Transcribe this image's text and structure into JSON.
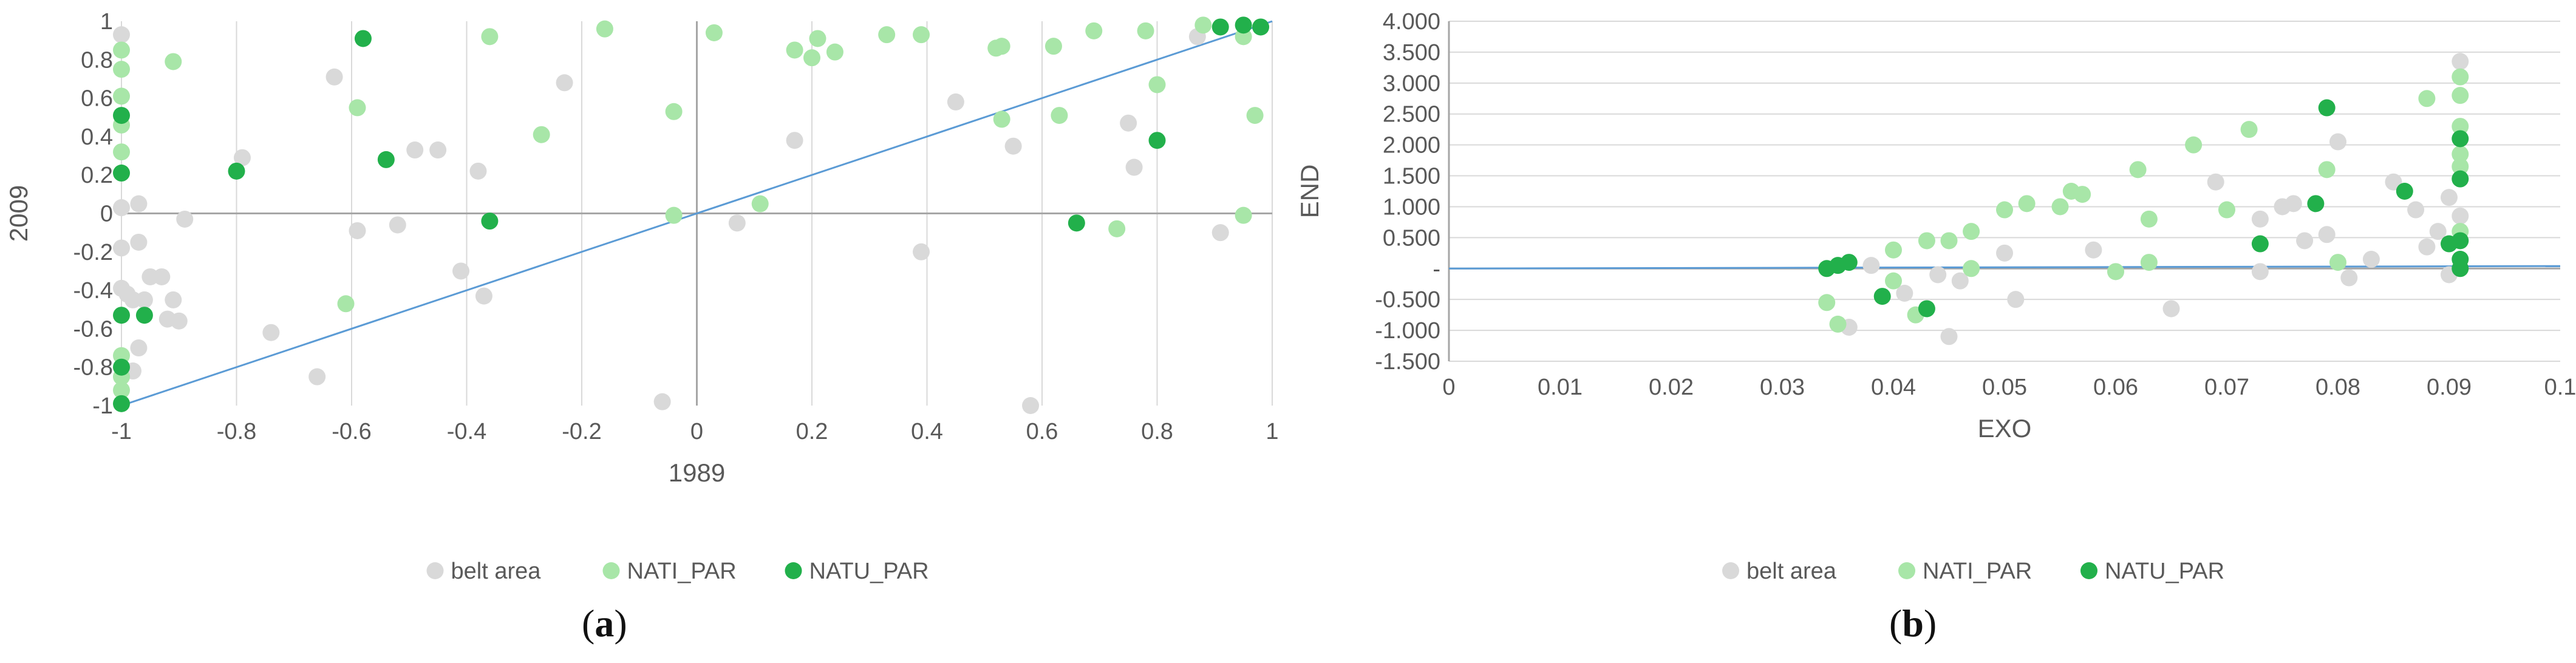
{
  "colors": {
    "belt_area": "#d9d9d9",
    "NATI_PAR": "#a8e6a8",
    "NATU_PAR": "#22b04b",
    "trend": "#5b9bd5",
    "axis": "#a6a6a6",
    "grid": "#d9d9d9",
    "text": "#595959"
  },
  "captions": [
    {
      "open": "(",
      "letter": "a",
      "close": ")"
    },
    {
      "open": "(",
      "letter": "b",
      "close": ")"
    }
  ],
  "chart_data": [
    {
      "type": "scatter",
      "xlabel": "1989",
      "ylabel": "2009",
      "xlim": [
        -1,
        1
      ],
      "ylim": [
        -1,
        1
      ],
      "x_ticks": [
        -1,
        -0.8,
        -0.6,
        -0.4,
        -0.2,
        0,
        0.2,
        0.4,
        0.6,
        0.8,
        1
      ],
      "x_tick_labels": [
        "-1",
        "-0.8",
        "-0.6",
        "-0.4",
        "-0.2",
        "0",
        "0.2",
        "0.4",
        "0.6",
        "0.8",
        "1"
      ],
      "y_ticks": [
        -1,
        -0.8,
        -0.6,
        -0.4,
        -0.2,
        0,
        0.2,
        0.4,
        0.6,
        0.8,
        1
      ],
      "y_tick_labels": [
        "-1",
        "-0.8",
        "-0.6",
        "-0.4",
        "-0.2",
        "0",
        "0.2",
        "0.4",
        "0.6",
        "0.8",
        "1"
      ],
      "grid": "vertical",
      "legend": "bottom-center",
      "trendline": [
        [
          -1,
          -1
        ],
        [
          1,
          1
        ]
      ],
      "series": [
        {
          "name": "belt area",
          "color": "#d9d9d9",
          "points": [
            [
              -1,
              0.93
            ],
            [
              -1,
              0.03
            ],
            [
              -1,
              -0.18
            ],
            [
              -1,
              -0.39
            ],
            [
              -0.99,
              -0.42
            ],
            [
              -0.98,
              -0.45
            ],
            [
              -0.98,
              -0.82
            ],
            [
              -0.97,
              0.05
            ],
            [
              -0.97,
              -0.15
            ],
            [
              -0.97,
              -0.7
            ],
            [
              -0.96,
              -0.45
            ],
            [
              -0.95,
              -0.33
            ],
            [
              -0.93,
              -0.33
            ],
            [
              -0.92,
              -0.55
            ],
            [
              -0.91,
              -0.45
            ],
            [
              -0.9,
              -0.56
            ],
            [
              -0.89,
              -0.03
            ],
            [
              -0.79,
              0.29
            ],
            [
              -0.74,
              -0.62
            ],
            [
              -0.66,
              -0.85
            ],
            [
              -0.63,
              0.71
            ],
            [
              -0.59,
              -0.09
            ],
            [
              -0.52,
              -0.06
            ],
            [
              -0.49,
              0.33
            ],
            [
              -0.45,
              0.33
            ],
            [
              -0.41,
              -0.3
            ],
            [
              -0.38,
              0.22
            ],
            [
              -0.37,
              -0.43
            ],
            [
              -0.23,
              0.68
            ],
            [
              -0.06,
              -0.98
            ],
            [
              0.07,
              -0.05
            ],
            [
              0.17,
              0.38
            ],
            [
              0.39,
              -0.2
            ],
            [
              0.45,
              0.58
            ],
            [
              0.55,
              0.35
            ],
            [
              0.58,
              -1.0
            ],
            [
              0.75,
              0.47
            ],
            [
              0.76,
              0.24
            ],
            [
              0.87,
              0.92
            ],
            [
              0.91,
              -0.1
            ]
          ]
        },
        {
          "name": "NATI_PAR",
          "color": "#a8e6a8",
          "points": [
            [
              -1,
              0.85
            ],
            [
              -1,
              0.75
            ],
            [
              -1,
              0.61
            ],
            [
              -1,
              0.46
            ],
            [
              -1,
              0.32
            ],
            [
              -1,
              -0.74
            ],
            [
              -1,
              -0.85
            ],
            [
              -1,
              -0.92
            ],
            [
              -0.91,
              0.79
            ],
            [
              -0.61,
              -0.47
            ],
            [
              -0.59,
              0.55
            ],
            [
              -0.36,
              0.92
            ],
            [
              -0.27,
              0.41
            ],
            [
              -0.16,
              0.96
            ],
            [
              -0.04,
              -0.01
            ],
            [
              -0.04,
              0.53
            ],
            [
              0.03,
              0.94
            ],
            [
              0.11,
              0.05
            ],
            [
              0.17,
              0.85
            ],
            [
              0.2,
              0.81
            ],
            [
              0.21,
              0.91
            ],
            [
              0.24,
              0.84
            ],
            [
              0.33,
              0.93
            ],
            [
              0.39,
              0.93
            ],
            [
              0.52,
              0.86
            ],
            [
              0.53,
              0.87
            ],
            [
              0.53,
              0.49
            ],
            [
              0.62,
              0.87
            ],
            [
              0.63,
              0.51
            ],
            [
              0.69,
              0.95
            ],
            [
              0.73,
              -0.08
            ],
            [
              0.78,
              0.95
            ],
            [
              0.8,
              0.67
            ],
            [
              0.88,
              0.98
            ],
            [
              0.95,
              0.92
            ],
            [
              0.95,
              -0.01
            ],
            [
              0.97,
              0.51
            ]
          ]
        },
        {
          "name": "NATU_PAR",
          "color": "#22b04b",
          "points": [
            [
              -1,
              0.51
            ],
            [
              -1,
              0.21
            ],
            [
              -1,
              -0.53
            ],
            [
              -1,
              -0.8
            ],
            [
              -1,
              -0.99
            ],
            [
              -0.96,
              -0.53
            ],
            [
              -0.8,
              0.22
            ],
            [
              -0.58,
              0.91
            ],
            [
              -0.54,
              0.28
            ],
            [
              -0.36,
              -0.04
            ],
            [
              0.66,
              -0.05
            ],
            [
              0.8,
              0.38
            ],
            [
              0.91,
              0.97
            ],
            [
              0.95,
              0.98
            ],
            [
              0.98,
              0.97
            ]
          ]
        }
      ]
    },
    {
      "type": "scatter",
      "xlabel": "EXO",
      "ylabel": "END",
      "xlim": [
        0,
        0.1
      ],
      "ylim": [
        -1.5,
        4.0
      ],
      "x_ticks": [
        0,
        0.01,
        0.02,
        0.03,
        0.04,
        0.05,
        0.06,
        0.07,
        0.08,
        0.09,
        0.1
      ],
      "x_tick_labels": [
        "0",
        "0.01",
        "0.02",
        "0.03",
        "0.04",
        "0.05",
        "0.06",
        "0.07",
        "0.08",
        "0.09",
        "0.1"
      ],
      "y_ticks": [
        -1.5,
        -1.0,
        -0.5,
        0,
        0.5,
        1.0,
        1.5,
        2.0,
        2.5,
        3.0,
        3.5,
        4.0
      ],
      "y_tick_labels": [
        "-1.500",
        "-1.000",
        "-0.500",
        "-",
        "0.500",
        "1.000",
        "1.500",
        "2.000",
        "2.500",
        "3.000",
        "3.500",
        "4.000"
      ],
      "grid": "horizontal",
      "legend": "bottom-center",
      "trendline": [
        [
          0,
          0
        ],
        [
          0.1,
          0.04
        ]
      ],
      "series": [
        {
          "name": "belt area",
          "color": "#d9d9d9",
          "points": [
            [
              0.036,
              -0.95
            ],
            [
              0.038,
              0.05
            ],
            [
              0.041,
              -0.4
            ],
            [
              0.044,
              -0.1
            ],
            [
              0.045,
              -1.1
            ],
            [
              0.046,
              -0.2
            ],
            [
              0.05,
              0.25
            ],
            [
              0.051,
              -0.5
            ],
            [
              0.058,
              0.3
            ],
            [
              0.06,
              -0.05
            ],
            [
              0.065,
              -0.65
            ],
            [
              0.069,
              1.4
            ],
            [
              0.073,
              0.8
            ],
            [
              0.073,
              -0.05
            ],
            [
              0.075,
              1.0
            ],
            [
              0.076,
              1.05
            ],
            [
              0.077,
              0.45
            ],
            [
              0.079,
              0.55
            ],
            [
              0.08,
              2.05
            ],
            [
              0.081,
              -0.15
            ],
            [
              0.083,
              0.15
            ],
            [
              0.085,
              1.4
            ],
            [
              0.087,
              0.95
            ],
            [
              0.088,
              0.35
            ],
            [
              0.089,
              0.6
            ],
            [
              0.09,
              1.15
            ],
            [
              0.091,
              3.35
            ],
            [
              0.091,
              0.85
            ],
            [
              0.09,
              -0.1
            ]
          ]
        },
        {
          "name": "NATI_PAR",
          "color": "#a8e6a8",
          "points": [
            [
              0.034,
              -0.55
            ],
            [
              0.035,
              -0.9
            ],
            [
              0.04,
              -0.2
            ],
            [
              0.04,
              0.3
            ],
            [
              0.042,
              -0.75
            ],
            [
              0.043,
              0.45
            ],
            [
              0.045,
              0.45
            ],
            [
              0.047,
              0.0
            ],
            [
              0.047,
              0.6
            ],
            [
              0.05,
              0.95
            ],
            [
              0.052,
              1.05
            ],
            [
              0.055,
              1.0
            ],
            [
              0.056,
              1.25
            ],
            [
              0.057,
              1.2
            ],
            [
              0.06,
              -0.05
            ],
            [
              0.062,
              1.6
            ],
            [
              0.063,
              0.8
            ],
            [
              0.063,
              0.1
            ],
            [
              0.067,
              2.0
            ],
            [
              0.072,
              2.25
            ],
            [
              0.07,
              0.95
            ],
            [
              0.079,
              1.6
            ],
            [
              0.08,
              0.1
            ],
            [
              0.088,
              2.75
            ],
            [
              0.091,
              3.1
            ],
            [
              0.091,
              2.8
            ],
            [
              0.091,
              2.3
            ],
            [
              0.091,
              1.85
            ],
            [
              0.091,
              1.65
            ],
            [
              0.091,
              0.6
            ]
          ]
        },
        {
          "name": "NATU_PAR",
          "color": "#22b04b",
          "points": [
            [
              0.034,
              0.0
            ],
            [
              0.035,
              0.05
            ],
            [
              0.036,
              0.1
            ],
            [
              0.039,
              -0.45
            ],
            [
              0.043,
              -0.65
            ],
            [
              0.073,
              0.4
            ],
            [
              0.078,
              1.05
            ],
            [
              0.079,
              2.6
            ],
            [
              0.086,
              1.25
            ],
            [
              0.09,
              0.4
            ],
            [
              0.091,
              2.1
            ],
            [
              0.091,
              1.45
            ],
            [
              0.091,
              0.45
            ],
            [
              0.091,
              0.15
            ],
            [
              0.091,
              0.0
            ]
          ]
        }
      ]
    }
  ]
}
